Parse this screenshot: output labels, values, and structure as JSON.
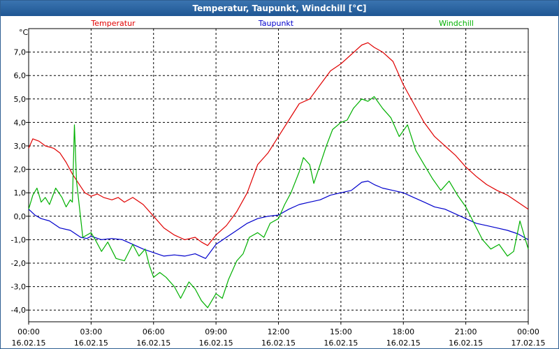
{
  "window": {
    "title": "Temperatur, Taupunkt, Windchill [°C]"
  },
  "chart_data": {
    "type": "line",
    "title": "Temperatur, Taupunkt, Windchill [°C]",
    "ylabel": "°C",
    "xlabel": "",
    "ylim": [
      -4.5,
      8.0
    ],
    "xlim": [
      0,
      24
    ],
    "grid": true,
    "y_ticks": [
      {
        "value": 7,
        "label": "7,0"
      },
      {
        "value": 6,
        "label": "6,0"
      },
      {
        "value": 5,
        "label": "5,0"
      },
      {
        "value": 4,
        "label": "4,0"
      },
      {
        "value": 3,
        "label": "3,0"
      },
      {
        "value": 2,
        "label": "2,0"
      },
      {
        "value": 1,
        "label": "1,0"
      },
      {
        "value": 0,
        "label": "0,0"
      },
      {
        "value": -1,
        "label": "-1,0"
      },
      {
        "value": -2,
        "label": "-2,0"
      },
      {
        "value": -3,
        "label": "-3,0"
      },
      {
        "value": -4,
        "label": "-4,0"
      }
    ],
    "x_ticks": [
      {
        "value": 0,
        "time": "00:00",
        "date": "16.02.15"
      },
      {
        "value": 3,
        "time": "03:00",
        "date": "16.02.15"
      },
      {
        "value": 6,
        "time": "06:00",
        "date": "16.02.15"
      },
      {
        "value": 9,
        "time": "09:00",
        "date": "16.02.15"
      },
      {
        "value": 12,
        "time": "12:00",
        "date": "16.02.15"
      },
      {
        "value": 15,
        "time": "15:00",
        "date": "16.02.15"
      },
      {
        "value": 18,
        "time": "18:00",
        "date": "16.02.15"
      },
      {
        "value": 21,
        "time": "21:00",
        "date": "16.02.15"
      },
      {
        "value": 24,
        "time": "00:00",
        "date": "17.02.15"
      }
    ],
    "series": [
      {
        "name": "Temperatur",
        "color": "#e00000",
        "legend_position": "top-left",
        "points": [
          [
            0,
            2.9
          ],
          [
            0.2,
            3.3
          ],
          [
            0.5,
            3.2
          ],
          [
            0.8,
            3.0
          ],
          [
            1.2,
            2.9
          ],
          [
            1.5,
            2.7
          ],
          [
            1.8,
            2.3
          ],
          [
            2.1,
            1.8
          ],
          [
            2.4,
            1.4
          ],
          [
            2.7,
            1.0
          ],
          [
            3.0,
            0.85
          ],
          [
            3.3,
            0.95
          ],
          [
            3.6,
            0.8
          ],
          [
            4.0,
            0.7
          ],
          [
            4.3,
            0.8
          ],
          [
            4.6,
            0.6
          ],
          [
            5.0,
            0.8
          ],
          [
            5.5,
            0.5
          ],
          [
            6.0,
            0.0
          ],
          [
            6.5,
            -0.5
          ],
          [
            7.0,
            -0.8
          ],
          [
            7.5,
            -1.0
          ],
          [
            8.0,
            -0.9
          ],
          [
            8.3,
            -1.1
          ],
          [
            8.6,
            -1.25
          ],
          [
            9.0,
            -0.8
          ],
          [
            9.5,
            -0.4
          ],
          [
            10.0,
            0.2
          ],
          [
            10.5,
            1.0
          ],
          [
            11.0,
            2.2
          ],
          [
            11.5,
            2.7
          ],
          [
            12.0,
            3.4
          ],
          [
            12.5,
            4.1
          ],
          [
            13.0,
            4.8
          ],
          [
            13.5,
            5.0
          ],
          [
            14.0,
            5.6
          ],
          [
            14.5,
            6.2
          ],
          [
            15.0,
            6.5
          ],
          [
            15.5,
            6.9
          ],
          [
            16.0,
            7.3
          ],
          [
            16.3,
            7.4
          ],
          [
            16.6,
            7.2
          ],
          [
            17.0,
            7.0
          ],
          [
            17.5,
            6.6
          ],
          [
            18.0,
            5.6
          ],
          [
            18.5,
            4.8
          ],
          [
            19.0,
            4.0
          ],
          [
            19.5,
            3.4
          ],
          [
            20.0,
            3.0
          ],
          [
            20.5,
            2.6
          ],
          [
            21.0,
            2.1
          ],
          [
            21.5,
            1.7
          ],
          [
            22.0,
            1.35
          ],
          [
            22.5,
            1.1
          ],
          [
            23.0,
            0.9
          ],
          [
            23.5,
            0.6
          ],
          [
            24.0,
            0.3
          ]
        ]
      },
      {
        "name": "Taupunkt",
        "color": "#0000cc",
        "legend_position": "top-center",
        "points": [
          [
            0,
            0.3
          ],
          [
            0.3,
            0.05
          ],
          [
            0.6,
            -0.1
          ],
          [
            1.0,
            -0.2
          ],
          [
            1.5,
            -0.5
          ],
          [
            2.0,
            -0.6
          ],
          [
            2.5,
            -0.9
          ],
          [
            2.8,
            -0.95
          ],
          [
            3.0,
            -0.85
          ],
          [
            3.5,
            -1.0
          ],
          [
            4.0,
            -0.95
          ],
          [
            4.5,
            -1.0
          ],
          [
            5.0,
            -1.2
          ],
          [
            5.5,
            -1.4
          ],
          [
            6.0,
            -1.55
          ],
          [
            6.5,
            -1.7
          ],
          [
            7.0,
            -1.65
          ],
          [
            7.5,
            -1.7
          ],
          [
            8.0,
            -1.6
          ],
          [
            8.5,
            -1.8
          ],
          [
            9.0,
            -1.2
          ],
          [
            9.5,
            -0.9
          ],
          [
            10.0,
            -0.6
          ],
          [
            10.5,
            -0.3
          ],
          [
            11.0,
            -0.1
          ],
          [
            11.5,
            0.0
          ],
          [
            12.0,
            0.05
          ],
          [
            12.5,
            0.3
          ],
          [
            13.0,
            0.5
          ],
          [
            13.5,
            0.6
          ],
          [
            14.0,
            0.7
          ],
          [
            14.5,
            0.9
          ],
          [
            15.0,
            1.0
          ],
          [
            15.5,
            1.1
          ],
          [
            16.0,
            1.45
          ],
          [
            16.3,
            1.5
          ],
          [
            16.6,
            1.35
          ],
          [
            17.0,
            1.2
          ],
          [
            17.5,
            1.1
          ],
          [
            18.0,
            1.0
          ],
          [
            18.5,
            0.8
          ],
          [
            19.0,
            0.6
          ],
          [
            19.5,
            0.4
          ],
          [
            20.0,
            0.3
          ],
          [
            20.5,
            0.1
          ],
          [
            21.0,
            -0.1
          ],
          [
            21.5,
            -0.3
          ],
          [
            22.0,
            -0.4
          ],
          [
            22.5,
            -0.5
          ],
          [
            23.0,
            -0.6
          ],
          [
            23.5,
            -0.75
          ],
          [
            24.0,
            -1.0
          ]
        ]
      },
      {
        "name": "Windchill",
        "color": "#00b000",
        "legend_position": "top-right",
        "points": [
          [
            0,
            0.3
          ],
          [
            0.2,
            0.9
          ],
          [
            0.4,
            1.2
          ],
          [
            0.6,
            0.6
          ],
          [
            0.8,
            0.8
          ],
          [
            1.0,
            0.5
          ],
          [
            1.3,
            1.2
          ],
          [
            1.6,
            0.8
          ],
          [
            1.8,
            0.4
          ],
          [
            2.0,
            0.7
          ],
          [
            2.1,
            0.6
          ],
          [
            2.2,
            3.9
          ],
          [
            2.3,
            1.5
          ],
          [
            2.6,
            -0.9
          ],
          [
            3.0,
            -0.7
          ],
          [
            3.2,
            -1.0
          ],
          [
            3.5,
            -1.5
          ],
          [
            3.8,
            -1.1
          ],
          [
            4.2,
            -1.8
          ],
          [
            4.6,
            -1.9
          ],
          [
            5.0,
            -1.2
          ],
          [
            5.3,
            -1.7
          ],
          [
            5.6,
            -1.4
          ],
          [
            5.8,
            -2.1
          ],
          [
            6.0,
            -2.6
          ],
          [
            6.3,
            -2.4
          ],
          [
            6.6,
            -2.6
          ],
          [
            7.0,
            -3.0
          ],
          [
            7.3,
            -3.5
          ],
          [
            7.7,
            -2.8
          ],
          [
            8.0,
            -3.1
          ],
          [
            8.3,
            -3.6
          ],
          [
            8.6,
            -3.9
          ],
          [
            9.0,
            -3.3
          ],
          [
            9.3,
            -3.5
          ],
          [
            9.6,
            -2.7
          ],
          [
            10.0,
            -1.9
          ],
          [
            10.3,
            -1.6
          ],
          [
            10.6,
            -0.9
          ],
          [
            11.0,
            -0.7
          ],
          [
            11.3,
            -0.9
          ],
          [
            11.6,
            -0.3
          ],
          [
            12.0,
            -0.1
          ],
          [
            12.3,
            0.5
          ],
          [
            12.6,
            1.0
          ],
          [
            13.0,
            1.9
          ],
          [
            13.2,
            2.5
          ],
          [
            13.5,
            2.2
          ],
          [
            13.7,
            1.4
          ],
          [
            14.0,
            2.2
          ],
          [
            14.3,
            3.0
          ],
          [
            14.6,
            3.7
          ],
          [
            15.0,
            4.0
          ],
          [
            15.3,
            4.1
          ],
          [
            15.6,
            4.6
          ],
          [
            16.0,
            5.0
          ],
          [
            16.3,
            4.9
          ],
          [
            16.6,
            5.1
          ],
          [
            17.0,
            4.6
          ],
          [
            17.4,
            4.2
          ],
          [
            17.8,
            3.4
          ],
          [
            18.2,
            3.9
          ],
          [
            18.6,
            2.8
          ],
          [
            19.0,
            2.2
          ],
          [
            19.4,
            1.6
          ],
          [
            19.8,
            1.1
          ],
          [
            20.2,
            1.5
          ],
          [
            20.6,
            0.9
          ],
          [
            21.0,
            0.4
          ],
          [
            21.4,
            -0.3
          ],
          [
            21.8,
            -1.0
          ],
          [
            22.2,
            -1.4
          ],
          [
            22.6,
            -1.2
          ],
          [
            23.0,
            -1.7
          ],
          [
            23.3,
            -1.5
          ],
          [
            23.6,
            -0.2
          ],
          [
            23.9,
            -1.1
          ],
          [
            24.0,
            -1.4
          ]
        ]
      }
    ]
  }
}
